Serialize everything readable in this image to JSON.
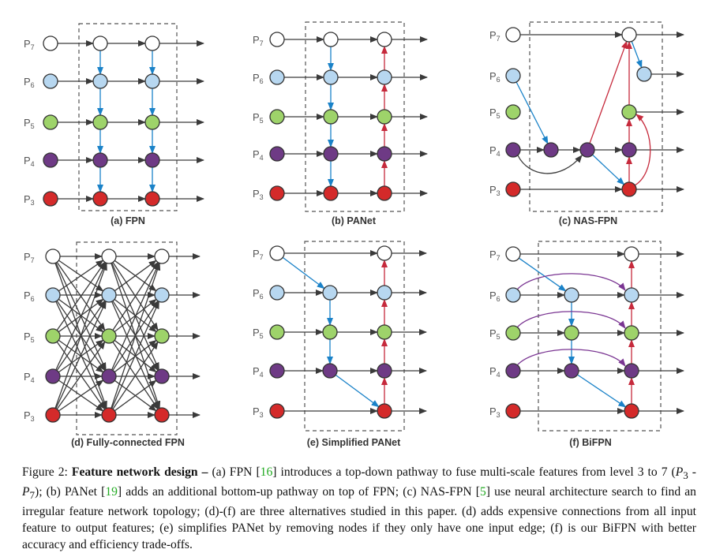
{
  "panels": [
    {
      "id": "a",
      "title": "(a) FPN"
    },
    {
      "id": "b",
      "title": "(b) PANet"
    },
    {
      "id": "c",
      "title": "(c) NAS-FPN"
    },
    {
      "id": "d",
      "title": "(d) Fully-connected FPN"
    },
    {
      "id": "e",
      "title": "(e) Simplified PANet"
    },
    {
      "id": "f",
      "title": "(f) BiFPN"
    }
  ],
  "levels": [
    {
      "base": "P",
      "sub": "7"
    },
    {
      "base": "P",
      "sub": "6"
    },
    {
      "base": "P",
      "sub": "5"
    },
    {
      "base": "P",
      "sub": "4"
    },
    {
      "base": "P",
      "sub": "3"
    }
  ],
  "colors": {
    "p7": "#ffffff",
    "p6": "#b7d7f0",
    "p5": "#9ed36a",
    "p4": "#6e3a85",
    "p3": "#d42a2a",
    "blue_arrow": "#1a82c8",
    "red_arrow": "#c62a3c",
    "purple_arrow": "#7a3592",
    "gray_arrow": "#3a3a3a"
  },
  "caption": {
    "label": "Figure 2: ",
    "bold": "Feature network design –",
    "t1": " (a) FPN [",
    "r1": "16",
    "t2": "] introduces a top-down pathway to fuse multi-scale features from level 3 to 7 (",
    "m1": "P",
    "m1s": "3",
    "m2": " - P",
    "m2s": "7",
    "t3": "); (b) PANet [",
    "r2": "19",
    "t4": "] adds an additional bottom-up pathway on top of FPN; (c) NAS-FPN [",
    "r3": "5",
    "t5": "] use neural architecture search to find an irregular feature network topology; (d)-(f) are three alternatives studied in this paper. (d) adds expensive connections from all input feature to output features; (e) simplifies PANet by removing nodes if they only have one input edge; (f) is our BiFPN with better accuracy and efficiency trade-offs."
  }
}
